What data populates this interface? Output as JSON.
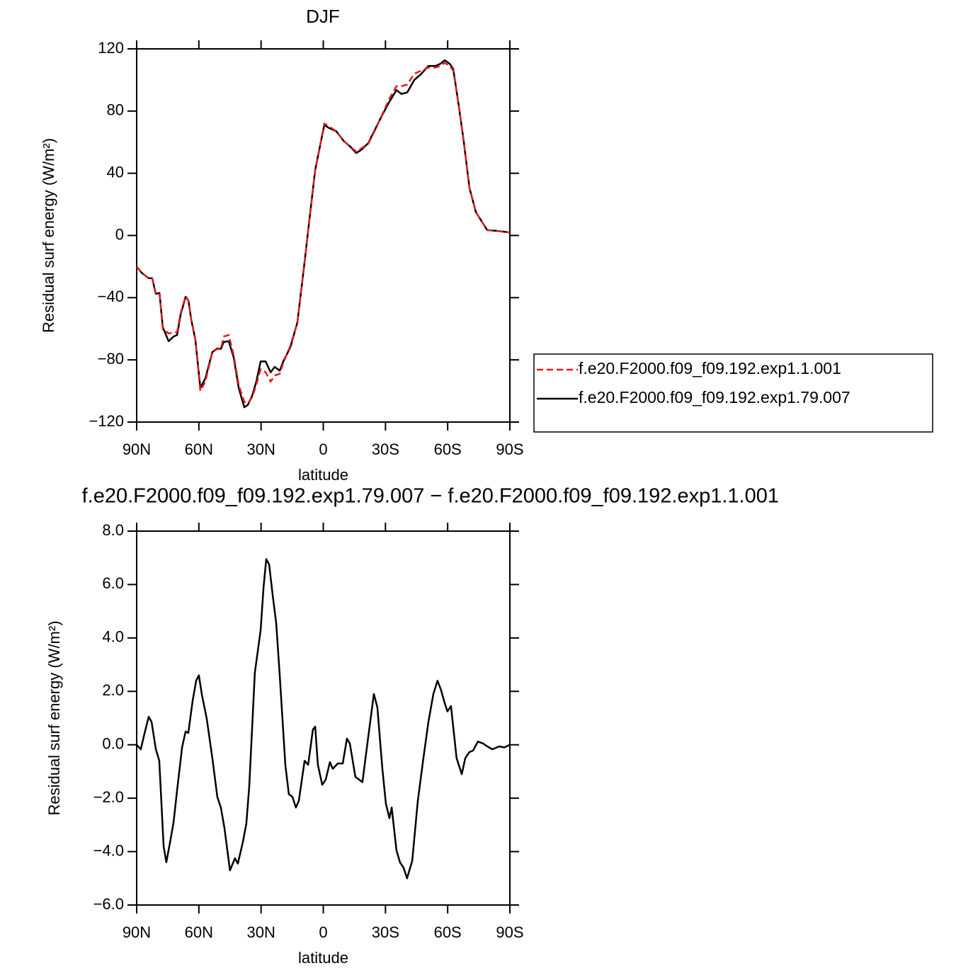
{
  "chart_data": [
    {
      "type": "line",
      "title": "DJF",
      "xlabel": "latitude",
      "ylabel": "Residual surf energy (W/m²)",
      "x": [
        90,
        87.6,
        84.2,
        82.5,
        80.8,
        79,
        77.4,
        74.6,
        72.2,
        70.5,
        68.8,
        66.4,
        65,
        63.7,
        61.7,
        59.3,
        56.9,
        53.5,
        51.1,
        49.4,
        48,
        45.6,
        43.2,
        40.8,
        38.1,
        36.4,
        34.3,
        32.3,
        30.2,
        27.8,
        25.4,
        23.4,
        21,
        19.3,
        15.9,
        12.5,
        9,
        6.7,
        3.9,
        1.5,
        -0.5,
        -2.9,
        -6.3,
        -9.7,
        -13.1,
        -15.9,
        -18.3,
        -21.7,
        -25.1,
        -28.5,
        -31.9,
        -35.3,
        -37.7,
        -40.5,
        -43.9,
        -47.3,
        -50.7,
        -54.1,
        -56.5,
        -58.6,
        -61,
        -62.7,
        -65.4,
        -67.8,
        -70.5,
        -73.6,
        -76.3,
        -79.1,
        -83.2,
        -86.6,
        -90
      ],
      "series": [
        {
          "name": "f.e20.F2000.f09_f09.192.exp1.1.001",
          "color": "#e41a1c",
          "line_style": "dashed",
          "values": [
            -20,
            -24,
            -27.5,
            -27.5,
            -37,
            -37,
            -60,
            -63,
            -62.5,
            -62,
            -50,
            -39,
            -42,
            -54,
            -67,
            -100,
            -94,
            -75,
            -73,
            -73,
            -65,
            -64,
            -77,
            -96,
            -107,
            -108,
            -104,
            -96,
            -86,
            -88,
            -94,
            -90,
            -89,
            -82,
            -71,
            -56,
            -17,
            10,
            42,
            58,
            72,
            70,
            67,
            61,
            57,
            54,
            56,
            59,
            68,
            78,
            88,
            96,
            96,
            97,
            104,
            106,
            108,
            108,
            109,
            111,
            109,
            106,
            83,
            60,
            30.7,
            15,
            9.3,
            3.4,
            3,
            2.5,
            2
          ]
        },
        {
          "name": "f.e20.F2000.f09_f09.192.exp1.79.007",
          "color": "#000000",
          "line_style": "solid",
          "values": [
            -20,
            -24,
            -27.5,
            -27.5,
            -37.5,
            -37,
            -59,
            -68,
            -65,
            -64,
            -51,
            -39.4,
            -42,
            -54,
            -67,
            -98,
            -92,
            -75,
            -72.6,
            -73,
            -68.5,
            -68,
            -78.5,
            -98,
            -110.5,
            -109,
            -103,
            -94,
            -81,
            -81,
            -88,
            -84.5,
            -87,
            -81,
            -72,
            -56,
            -17,
            10,
            42,
            58,
            71,
            69,
            67,
            61,
            57,
            53,
            55,
            59.4,
            68.5,
            77.6,
            86,
            93.5,
            91,
            92,
            100,
            104,
            109,
            109,
            110.4,
            112.7,
            110.4,
            107,
            83,
            60,
            30.7,
            15,
            9.3,
            3.4,
            3,
            2.5,
            2
          ]
        }
      ],
      "xlim": [
        90,
        -90
      ],
      "xticks": [
        {
          "value": 90,
          "label": "90N"
        },
        {
          "value": 60,
          "label": "60N"
        },
        {
          "value": 30,
          "label": "30N"
        },
        0,
        {
          "value": -30,
          "label": "30S"
        },
        {
          "value": -60,
          "label": "60S"
        },
        {
          "value": -90,
          "label": "90S"
        }
      ],
      "ylim": [
        -120,
        120
      ],
      "yticks": [
        {
          "value": -120,
          "label": "−120"
        },
        {
          "value": -80,
          "label": "−80"
        },
        {
          "value": -40,
          "label": "−40"
        },
        0,
        40,
        80,
        120
      ],
      "legend": "right"
    },
    {
      "type": "line",
      "title": "f.e20.F2000.f09_f09.192.exp1.79.007 − f.e20.F2000.f09_f09.192.exp1.1.001",
      "xlabel": "latitude",
      "ylabel": "Residual surf energy (W/m²)",
      "x": [
        90,
        88,
        86.6,
        84.2,
        82.8,
        80.8,
        79.1,
        77,
        75.7,
        73.9,
        72.2,
        70.5,
        68.1,
        66.4,
        65.1,
        63,
        61.3,
        60,
        58.6,
        56.2,
        53.5,
        51.1,
        49.4,
        47.7,
        45,
        42.6,
        41.2,
        38.8,
        37.1,
        35.7,
        33,
        30.2,
        28.8,
        27.5,
        26.1,
        24.4,
        22.7,
        21,
        18.3,
        16.6,
        14.9,
        13.2,
        11.8,
        9,
        7.3,
        5,
        3.9,
        2.6,
        0.5,
        -1.2,
        -3.2,
        -4.6,
        -7,
        -9.4,
        -11.4,
        -12.8,
        -15.5,
        -18.9,
        -21.7,
        -24.4,
        -26.1,
        -28.5,
        -30.2,
        -31.9,
        -33,
        -35.3,
        -37,
        -38.7,
        -40.4,
        -42.9,
        -45.6,
        -48.3,
        -50.7,
        -53.1,
        -55.1,
        -56.8,
        -58.6,
        -59.9,
        -61.6,
        -64.3,
        -66.8,
        -68.5,
        -70.5,
        -72.2,
        -74.6,
        -77,
        -79.1,
        -81.5,
        -84.9,
        -87.3,
        -90
      ],
      "values": [
        0,
        -0.17,
        0.3,
        1.05,
        0.85,
        -0.15,
        -0.6,
        -3.8,
        -4.4,
        -3.65,
        -2.9,
        -1.7,
        -0.1,
        0.5,
        0.44,
        1.65,
        2.4,
        2.6,
        1.9,
        0.97,
        -0.5,
        -1.95,
        -2.35,
        -3.1,
        -4.7,
        -4.25,
        -4.45,
        -3.65,
        -2.95,
        -1.55,
        2.7,
        4.3,
        5.9,
        6.95,
        6.75,
        5.6,
        4.55,
        2.6,
        -0.75,
        -1.85,
        -1.95,
        -2.35,
        -2.1,
        -0.6,
        -0.75,
        0.57,
        0.68,
        -0.75,
        -1.5,
        -1.3,
        -0.65,
        -0.9,
        -0.7,
        -0.7,
        0.23,
        0.05,
        -1.2,
        -1.4,
        0.3,
        1.9,
        1.4,
        -0.9,
        -2.2,
        -2.75,
        -2.35,
        -3.95,
        -4.4,
        -4.6,
        -5,
        -4.35,
        -2.1,
        -0.5,
        0.85,
        1.9,
        2.4,
        2.05,
        1.55,
        1.25,
        1.45,
        -0.5,
        -1.1,
        -0.5,
        -0.27,
        -0.22,
        0.12,
        0.05,
        -0.06,
        -0.17,
        -0.06,
        -0.1,
        0
      ],
      "color": "#000000",
      "xlim": [
        90,
        -90
      ],
      "xticks": [
        {
          "value": 90,
          "label": "90N"
        },
        {
          "value": 60,
          "label": "60N"
        },
        {
          "value": 30,
          "label": "30N"
        },
        0,
        {
          "value": -30,
          "label": "30S"
        },
        {
          "value": -60,
          "label": "60S"
        },
        {
          "value": -90,
          "label": "90S"
        }
      ],
      "ylim": [
        -6,
        8
      ],
      "yticks": [
        {
          "value": -6,
          "label": "−6.0"
        },
        {
          "value": -4,
          "label": "−4.0"
        },
        {
          "value": -2,
          "label": "−2.0"
        },
        {
          "value": 0,
          "label": "0.0"
        },
        {
          "value": 2,
          "label": "2.0"
        },
        {
          "value": 4,
          "label": "4.0"
        },
        {
          "value": 6,
          "label": "6.0"
        },
        {
          "value": 8,
          "label": "8.0"
        }
      ]
    }
  ]
}
